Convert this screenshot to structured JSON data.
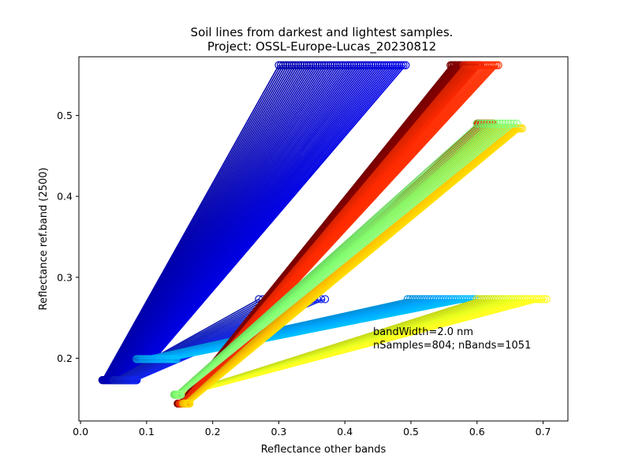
{
  "chart_data": {
    "type": "line",
    "title": "Soil lines from darkest and lightest samples.",
    "subtitle": "Project: OSSL-Europe-Lucas_20230812",
    "xlabel": "Reflectance other bands",
    "ylabel": "Reflectance ref.band (2500)",
    "xlim": [
      -0.0025,
      0.7375
    ],
    "ylim": [
      0.1225,
      0.5725
    ],
    "xticks": [
      0.0,
      0.1,
      0.2,
      0.3,
      0.4,
      0.5,
      0.6,
      0.7
    ],
    "xtick_labels": [
      "0.0",
      "0.1",
      "0.2",
      "0.3",
      "0.4",
      "0.5",
      "0.6",
      "0.7"
    ],
    "yticks": [
      0.2,
      0.3,
      0.4,
      0.5
    ],
    "ytick_labels": [
      "0.2",
      "0.3",
      "0.4",
      "0.5"
    ],
    "grid": false,
    "annotations": [
      "bandWidth=2.0 nm",
      "nSamples=804; nBands=1051"
    ],
    "colormap": "jet",
    "series": [
      {
        "group": "blue-upper",
        "color": "#0000c8",
        "from": [
          [
            0.033,
            0.173
          ],
          [
            0.085,
            0.173
          ]
        ],
        "to": [
          [
            0.3,
            0.562
          ],
          [
            0.492,
            0.562
          ]
        ],
        "count": 60
      },
      {
        "group": "blue-lower",
        "color": "#1020d0",
        "from": [
          [
            0.05,
            0.173
          ],
          [
            0.085,
            0.173
          ]
        ],
        "to": [
          [
            0.27,
            0.273
          ],
          [
            0.37,
            0.273
          ]
        ],
        "count": 18
      },
      {
        "group": "cyan-middle",
        "color": "#00a8ff",
        "from": [
          [
            0.085,
            0.199
          ],
          [
            0.145,
            0.199
          ]
        ],
        "to": [
          [
            0.495,
            0.273
          ],
          [
            0.6,
            0.273
          ]
        ],
        "count": 30
      },
      {
        "group": "yellow-lower",
        "color": "#e8ff20",
        "from": [
          [
            0.145,
            0.155
          ],
          [
            0.16,
            0.155
          ]
        ],
        "to": [
          [
            0.6,
            0.273
          ],
          [
            0.705,
            0.273
          ]
        ],
        "count": 30
      },
      {
        "group": "dark-red",
        "color": "#8b0000",
        "from": [
          [
            0.147,
            0.144
          ],
          [
            0.16,
            0.144
          ]
        ],
        "to": [
          [
            0.56,
            0.562
          ],
          [
            0.605,
            0.562
          ]
        ],
        "count": 25
      },
      {
        "group": "red-orange",
        "color": "#ff2a00",
        "from": [
          [
            0.15,
            0.144
          ],
          [
            0.16,
            0.144
          ]
        ],
        "to": [
          [
            0.58,
            0.562
          ],
          [
            0.632,
            0.562
          ]
        ],
        "count": 20
      },
      {
        "group": "red-middle",
        "color": "#ff3300",
        "from": [
          [
            0.15,
            0.144
          ],
          [
            0.16,
            0.144
          ]
        ],
        "to": [
          [
            0.6,
            0.49
          ],
          [
            0.625,
            0.49
          ]
        ],
        "count": 20
      },
      {
        "group": "orange-yellow",
        "color": "#ffc000",
        "from": [
          [
            0.155,
            0.144
          ],
          [
            0.165,
            0.144
          ]
        ],
        "to": [
          [
            0.61,
            0.484
          ],
          [
            0.668,
            0.484
          ]
        ],
        "count": 25
      },
      {
        "group": "green",
        "color": "#80ff70",
        "from": [
          [
            0.142,
            0.155
          ],
          [
            0.152,
            0.155
          ]
        ],
        "to": [
          [
            0.6,
            0.49
          ],
          [
            0.66,
            0.49
          ]
        ],
        "count": 15
      }
    ]
  }
}
